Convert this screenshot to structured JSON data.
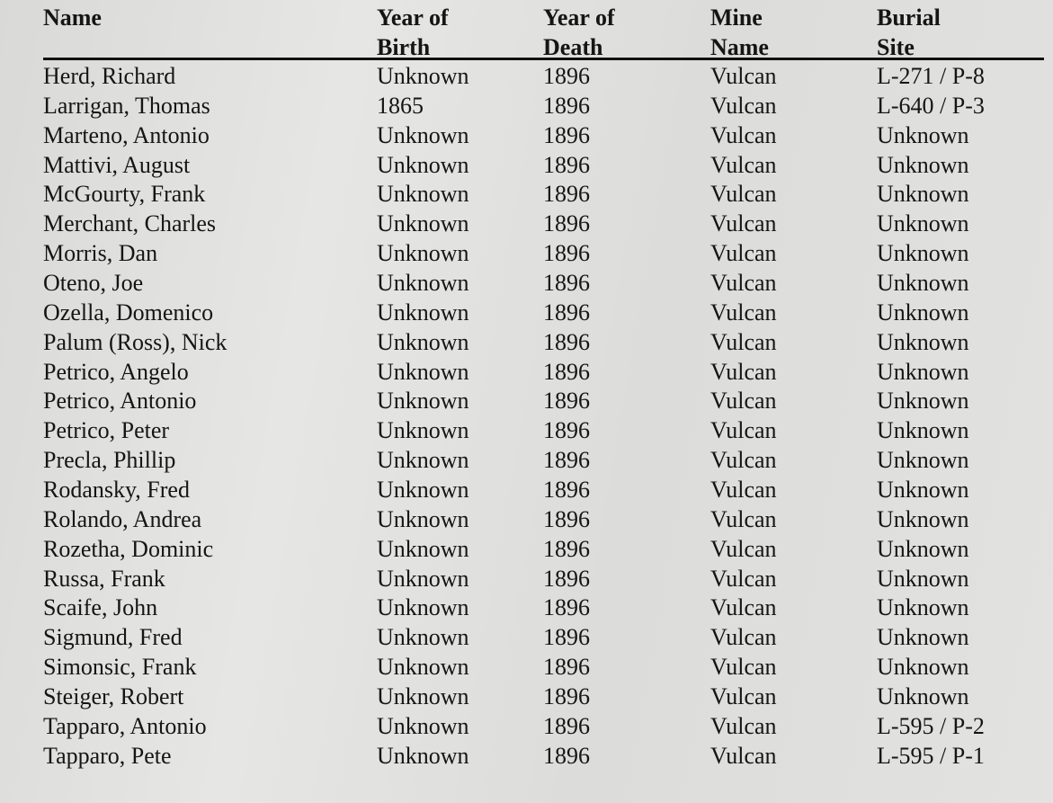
{
  "table": {
    "headers": [
      [
        "",
        "Name"
      ],
      [
        "Year of",
        "Birth"
      ],
      [
        "Year of",
        "Death"
      ],
      [
        "Mine",
        "Name"
      ],
      [
        "Burial",
        "Site"
      ]
    ],
    "rows": [
      [
        "Herd, Richard",
        "Unknown",
        "1896",
        "Vulcan",
        "L-271 / P-8"
      ],
      [
        "Larrigan, Thomas",
        "1865",
        "1896",
        "Vulcan",
        "L-640 / P-3"
      ],
      [
        "Marteno, Antonio",
        "Unknown",
        "1896",
        "Vulcan",
        "Unknown"
      ],
      [
        "Mattivi, August",
        "Unknown",
        "1896",
        "Vulcan",
        "Unknown"
      ],
      [
        "McGourty, Frank",
        "Unknown",
        "1896",
        "Vulcan",
        "Unknown"
      ],
      [
        "Merchant, Charles",
        "Unknown",
        "1896",
        "Vulcan",
        "Unknown"
      ],
      [
        "Morris, Dan",
        "Unknown",
        "1896",
        "Vulcan",
        "Unknown"
      ],
      [
        "Oteno, Joe",
        "Unknown",
        "1896",
        "Vulcan",
        "Unknown"
      ],
      [
        "Ozella, Domenico",
        "Unknown",
        "1896",
        "Vulcan",
        "Unknown"
      ],
      [
        "Palum (Ross), Nick",
        "Unknown",
        "1896",
        "Vulcan",
        "Unknown"
      ],
      [
        "Petrico, Angelo",
        "Unknown",
        "1896",
        "Vulcan",
        "Unknown"
      ],
      [
        "Petrico, Antonio",
        "Unknown",
        "1896",
        "Vulcan",
        "Unknown"
      ],
      [
        "Petrico, Peter",
        "Unknown",
        "1896",
        "Vulcan",
        "Unknown"
      ],
      [
        "Precla, Phillip",
        "Unknown",
        "1896",
        "Vulcan",
        "Unknown"
      ],
      [
        "Rodansky, Fred",
        "Unknown",
        "1896",
        "Vulcan",
        "Unknown"
      ],
      [
        "Rolando, Andrea",
        "Unknown",
        "1896",
        "Vulcan",
        "Unknown"
      ],
      [
        "Rozetha, Dominic",
        "Unknown",
        "1896",
        "Vulcan",
        "Unknown"
      ],
      [
        "Russa, Frank",
        "Unknown",
        "1896",
        "Vulcan",
        "Unknown"
      ],
      [
        "Scaife, John",
        "Unknown",
        "1896",
        "Vulcan",
        "Unknown"
      ],
      [
        "Sigmund, Fred",
        "Unknown",
        "1896",
        "Vulcan",
        "Unknown"
      ],
      [
        "Simonsic, Frank",
        "Unknown",
        "1896",
        "Vulcan",
        "Unknown"
      ],
      [
        "Steiger, Robert",
        "Unknown",
        "1896",
        "Vulcan",
        "Unknown"
      ],
      [
        "Tapparo, Antonio",
        "Unknown",
        "1896",
        "Vulcan",
        "L-595 / P-2"
      ],
      [
        "Tapparo, Pete",
        "Unknown",
        "1896",
        "Vulcan",
        "L-595 / P-1"
      ]
    ]
  }
}
